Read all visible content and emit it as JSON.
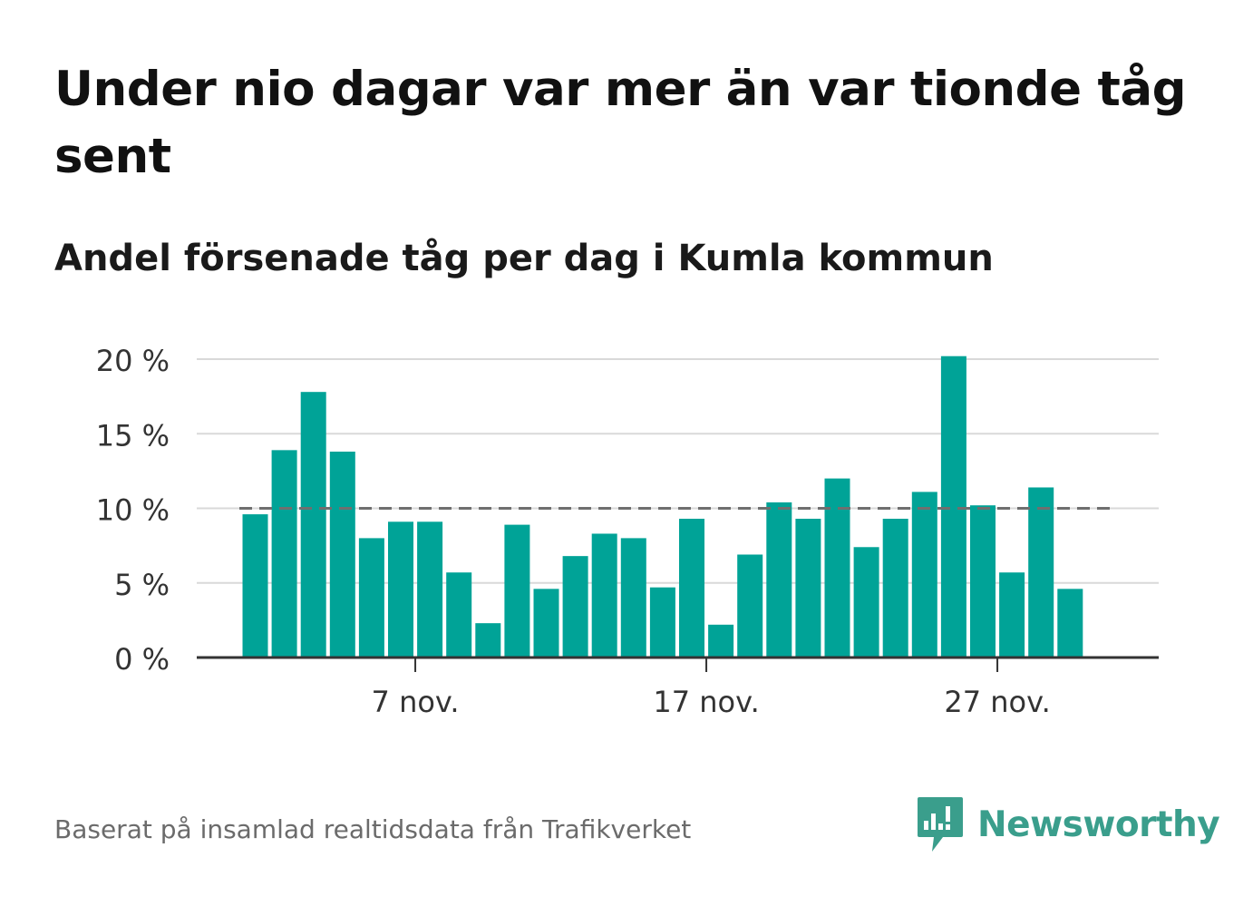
{
  "title": "Under nio dagar var mer än var tionde tåg sent",
  "subtitle": "Andel försenade tåg per dag i Kumla kommun",
  "source": "Baserat på insamlad realtidsdata från Trafikverket",
  "brand": {
    "name": "Newsworthy",
    "icon": "newsworthy-logo-icon",
    "color": "#3a9e8c"
  },
  "colors": {
    "bar": "#00a397",
    "grid": "#d9d9d9",
    "axis": "#333333",
    "reference": "#6f6f6f",
    "text": "#333333"
  },
  "chart_data": {
    "type": "bar",
    "x_tick_labels": [
      {
        "day": 7,
        "label": "7 nov."
      },
      {
        "day": 17,
        "label": "17 nov."
      },
      {
        "day": 27,
        "label": "27 nov."
      }
    ],
    "y_ticks": [
      0,
      5,
      10,
      15,
      20
    ],
    "y_tick_labels": [
      "0 %",
      "5 %",
      "10 %",
      "15 %",
      "20 %"
    ],
    "ylim": [
      0,
      20.5
    ],
    "unit": "%",
    "reference_line": 10,
    "grid": true,
    "days": [
      1,
      2,
      3,
      4,
      5,
      6,
      7,
      8,
      9,
      10,
      11,
      12,
      13,
      14,
      15,
      16,
      17,
      18,
      19,
      20,
      21,
      22,
      23,
      24,
      25,
      26,
      27,
      28,
      29,
      30
    ],
    "values": [
      9.6,
      13.9,
      17.8,
      13.8,
      8.0,
      9.1,
      9.1,
      5.7,
      2.3,
      8.9,
      4.6,
      6.8,
      8.3,
      8.0,
      4.7,
      9.3,
      2.2,
      6.9,
      10.4,
      9.3,
      12.0,
      7.4,
      9.3,
      11.1,
      20.2,
      10.2,
      5.7,
      11.4,
      4.6,
      0
    ]
  }
}
